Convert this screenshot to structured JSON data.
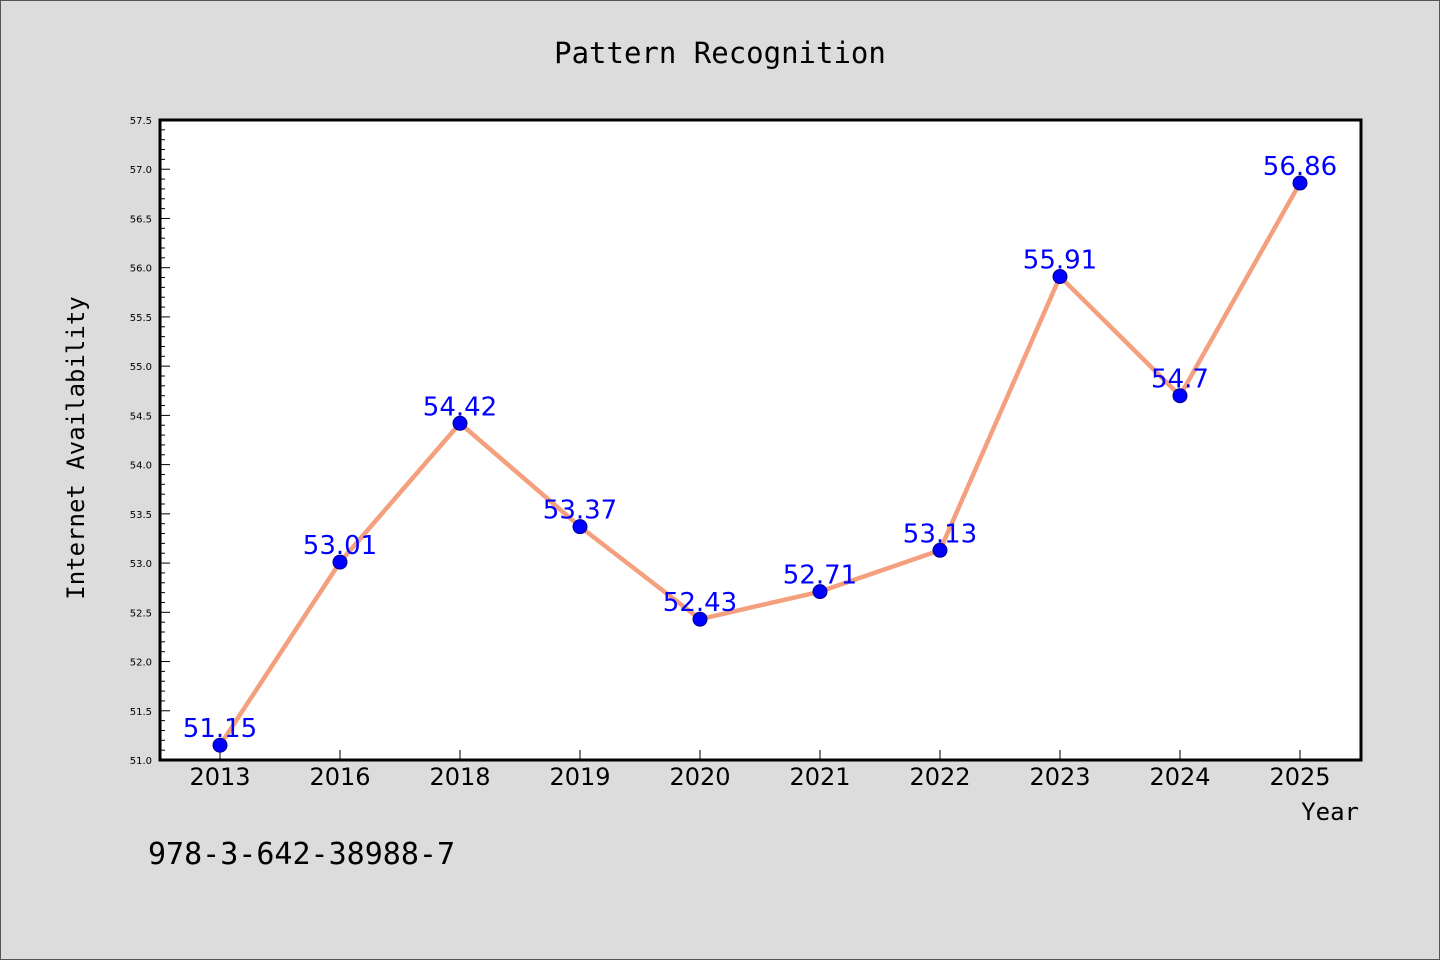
{
  "chart_data": {
    "type": "line",
    "title": "Pattern Recognition",
    "xlabel": "Year",
    "ylabel": "Internet Availability",
    "categories": [
      "2013",
      "2016",
      "2018",
      "2019",
      "2020",
      "2021",
      "2022",
      "2023",
      "2024",
      "2025"
    ],
    "series": [
      {
        "values": [
          51.15,
          53.01,
          54.42,
          53.37,
          52.43,
          52.71,
          53.13,
          55.91,
          54.7,
          56.86
        ],
        "labels": [
          "51.15",
          "53.01",
          "54.42",
          "53.37",
          "52.43",
          "52.71",
          "53.13",
          "55.91",
          "54.7",
          "56.86"
        ],
        "line_color": "#f4a07e",
        "marker_color": "#0000ff"
      }
    ],
    "ylim": [
      51.0,
      57.5
    ],
    "yticks": [
      "51.0",
      "51.5",
      "52.0",
      "52.5",
      "53.0",
      "53.5",
      "54.0",
      "54.5",
      "55.0",
      "55.5",
      "56.0",
      "56.5",
      "57.0",
      "57.5"
    ],
    "grid": false,
    "legend": "none"
  },
  "footer": {
    "isbn": "978-3-642-38988-7"
  },
  "colors": {
    "background": "#dcdcdc",
    "plot_background": "#ffffff",
    "line": "#f4a07e",
    "marker": "#0000ff",
    "data_label": "#0000ff"
  }
}
